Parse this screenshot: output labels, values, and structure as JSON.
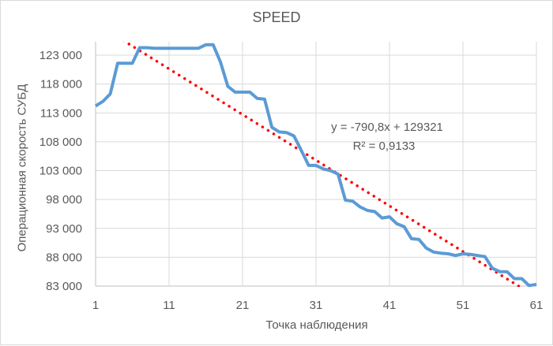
{
  "chart_data": {
    "type": "line",
    "title": "SPEED",
    "xlabel": "Точка наблюдения",
    "ylabel": "Операционная скорость СУБД",
    "x_tick_labels": [
      "1",
      "11",
      "21",
      "31",
      "41",
      "51",
      "61"
    ],
    "y_tick_labels": [
      "83 000",
      "88 000",
      "93 000",
      "98 000",
      "103 000",
      "108 000",
      "113 000",
      "118 000",
      "123 000"
    ],
    "xlim": [
      1,
      61
    ],
    "ylim": [
      83000,
      125000
    ],
    "grid": true,
    "legend": null,
    "x": [
      1,
      2,
      3,
      4,
      5,
      6,
      7,
      8,
      9,
      10,
      11,
      12,
      13,
      14,
      15,
      16,
      17,
      18,
      19,
      20,
      21,
      22,
      23,
      24,
      25,
      26,
      27,
      28,
      29,
      30,
      31,
      32,
      33,
      34,
      35,
      36,
      37,
      38,
      39,
      40,
      41,
      42,
      43,
      44,
      45,
      46,
      47,
      48,
      49,
      50,
      51,
      52,
      53,
      54,
      55,
      56,
      57,
      58,
      59,
      60,
      61
    ],
    "series": [
      {
        "name": "SPEED",
        "color": "#5b9bd5",
        "values": [
          114200,
          115000,
          116300,
          121600,
          121600,
          121600,
          124300,
          124300,
          124200,
          124200,
          124200,
          124200,
          124200,
          124200,
          124200,
          124800,
          124800,
          121800,
          117600,
          116600,
          116600,
          116600,
          115500,
          115400,
          110500,
          109700,
          109600,
          109000,
          106500,
          103900,
          103900,
          103300,
          103000,
          102400,
          97900,
          97700,
          96700,
          96100,
          95900,
          94800,
          95000,
          93800,
          93300,
          91200,
          91100,
          89600,
          88900,
          88700,
          88600,
          88300,
          88600,
          88500,
          88300,
          88100,
          86100,
          85500,
          85500,
          84300,
          84300,
          83100,
          83300
        ]
      }
    ],
    "trendline": {
      "type": "linear",
      "color": "#ff0000",
      "style": "dotted",
      "slope": -790.8,
      "intercept": 129321,
      "r_squared": 0.9133,
      "equation_label": "y = -790,8x + 129321",
      "r2_label": "R² = 0,9133"
    }
  }
}
